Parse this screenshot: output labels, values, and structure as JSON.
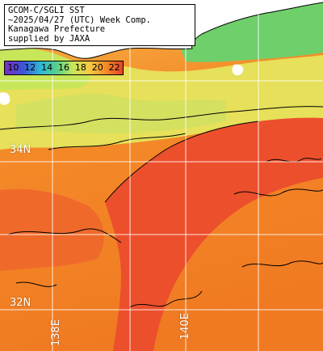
{
  "header": {
    "line1": "GCOM-C/SGLI SST",
    "line2": "~2025/04/27 (UTC) Week Comp.",
    "line3": "Kanagawa Prefecture",
    "line4": "supplied by JAXA"
  },
  "scale": {
    "labels": [
      "10",
      "12",
      "14",
      "16",
      "18",
      "20",
      "22"
    ],
    "unit_range_c": [
      10,
      22
    ]
  },
  "grid_labels": {
    "lat_34": "34N",
    "lat_32": "32N",
    "lon_138": "138E",
    "lon_140": "140E"
  },
  "colors": {
    "land": "#ffffff",
    "cold_water": "#5ec66e",
    "cool_water": "#c8e65a",
    "mid_water": "#f6c845",
    "warm_water": "#f48a28",
    "hot_water": "#e2432a",
    "coastline": "#000000",
    "gridline": "#ffffff"
  }
}
